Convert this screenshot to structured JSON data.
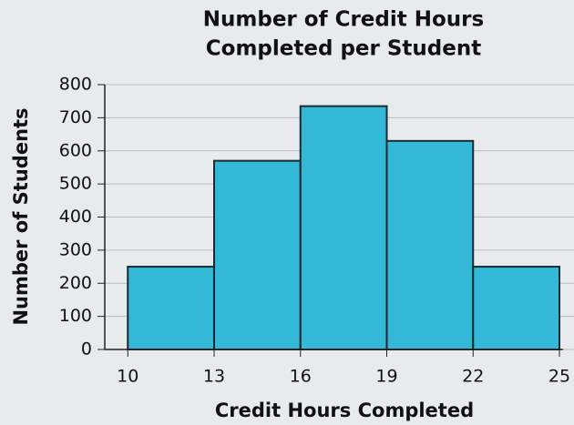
{
  "chart_data": {
    "type": "histogram",
    "title": [
      "Number of Credit Hours",
      "Completed per Student"
    ],
    "x_label": "Credit Hours Completed",
    "y_label": "Number of Students",
    "bins": [
      10,
      13,
      16,
      19,
      22,
      25
    ],
    "values": [
      250,
      570,
      735,
      630,
      250
    ],
    "color": "#33b8d8",
    "edge_color": "#1a2a33",
    "xlim": [
      9.2,
      25
    ],
    "xticks": [
      10,
      13,
      16,
      19,
      22,
      25
    ],
    "ylim": [
      0,
      800
    ],
    "yticks": [
      0,
      100,
      200,
      300,
      400,
      500,
      600,
      700,
      800
    ],
    "grid": true
  }
}
